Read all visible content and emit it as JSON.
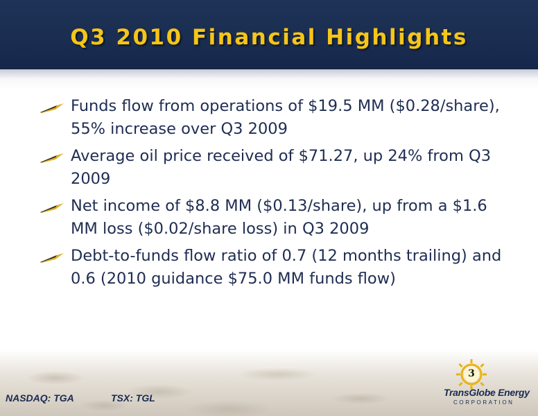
{
  "slide": {
    "title": "Q3 2010 Financial Highlights",
    "page_number": "3"
  },
  "bullets": [
    {
      "text": "Funds flow from operations of $19.5 MM ($0.28/share), 55% increase over Q3 2009",
      "icon": "arrow-bullet-icon"
    },
    {
      "text": "Average oil price received of $71.27, up 24% from Q3 2009",
      "icon": "arrow-bullet-icon"
    },
    {
      "text": "Net income of $8.8 MM ($0.13/share), up from a $1.6 MM loss ($0.02/share loss) in Q3 2009",
      "icon": "arrow-bullet-icon"
    },
    {
      "text": "Debt-to-funds flow ratio of 0.7 (12 months trailing) and 0.6 (2010 guidance $75.0 MM funds flow)",
      "icon": "arrow-bullet-icon"
    }
  ],
  "footer": {
    "nasdaq": "NASDAQ: TGA",
    "tsx": "TSX: TGL",
    "logo_name": "TransGlobe Energy",
    "logo_sub": "CORPORATION"
  },
  "colors": {
    "header_bg": "#1a2d50",
    "title": "#f5c518",
    "body_text": "#1f2d52",
    "bullet_accent": "#e0b020"
  }
}
